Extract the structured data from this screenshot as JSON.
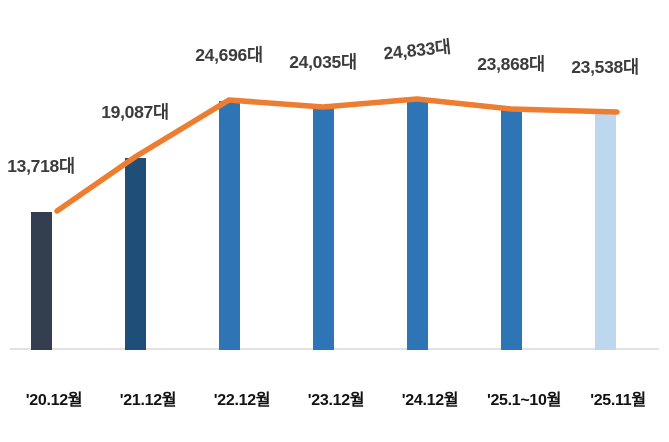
{
  "chart_data": {
    "type": "bar",
    "overlay": "line",
    "title": "",
    "xlabel": "",
    "ylabel": "",
    "legend": "none",
    "grid": "off",
    "categories": [
      "'20.12월",
      "'21.12월",
      "'22.12월",
      "'23.12월",
      "'24.12월",
      "'25.1~10월",
      "'25.11월"
    ],
    "values": [
      13718,
      19087,
      24696,
      24035,
      24833,
      23868,
      23538
    ],
    "data_labels": [
      "13,718대",
      "19,087대",
      "24,696대",
      "24,035대",
      "24,833대",
      "23,868대",
      "23,538대"
    ],
    "line_values": [
      13718,
      19087,
      24696,
      24035,
      24833,
      23868,
      23538
    ],
    "ylim": [
      0,
      25000
    ],
    "colors": {
      "bar_colors": [
        "#333F50",
        "#1F4E79",
        "#2E75B6",
        "#2E75B6",
        "#2E75B6",
        "#2E75B6",
        "#BDD7EE"
      ],
      "line": "#ED7D31",
      "axis_line": "#E2E2E2",
      "data_label_text": "#3C3C3C",
      "axis_label_text": "#121212",
      "background": "#FFFFFF"
    }
  }
}
